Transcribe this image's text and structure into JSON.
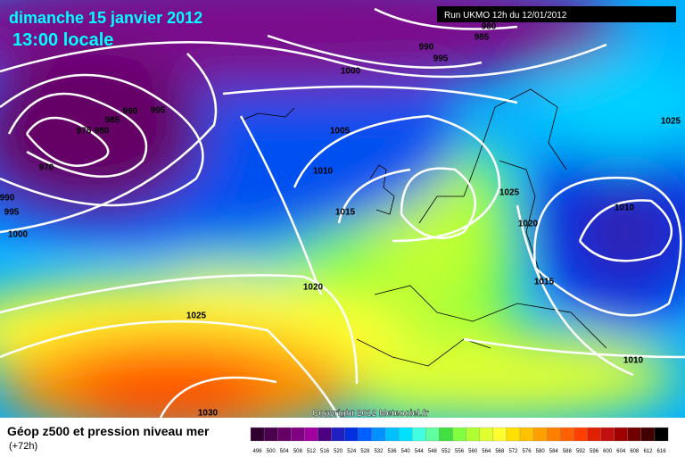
{
  "header": {
    "date": "dimanche 15 janvier 2012",
    "time": "13:00 locale",
    "run": "Run UKMO 12h du 12/01/2012"
  },
  "isobar_labels": [
    "980",
    "985",
    "990",
    "995",
    "1000",
    "990",
    "995",
    "985",
    "975",
    "980",
    "970",
    "990",
    "995",
    "1000",
    "1005",
    "1010",
    "1015",
    "1025",
    "1020",
    "1010",
    "1025",
    "1015",
    "1020",
    "1025",
    "1010",
    "1030"
  ],
  "copyright": "Copyright 2012 Meteociel.fr",
  "legend": {
    "title": "Géop z500 et pression niveau mer",
    "subtitle": "(+72h)",
    "scale": [
      496,
      500,
      504,
      508,
      512,
      516,
      520,
      524,
      528,
      532,
      536,
      540,
      544,
      548,
      552,
      556,
      560,
      564,
      568,
      572,
      576,
      580,
      584,
      588,
      592,
      596,
      600,
      604,
      608,
      612,
      616
    ],
    "colors": [
      "#300030",
      "#4a004a",
      "#650065",
      "#820082",
      "#a000a0",
      "#4b0082",
      "#2020c0",
      "#0030e0",
      "#0060ff",
      "#0090ff",
      "#00c0ff",
      "#00e0ff",
      "#40ffe0",
      "#60ffa0",
      "#40e040",
      "#80ff40",
      "#b0ff30",
      "#e0ff30",
      "#ffff30",
      "#ffe000",
      "#ffc000",
      "#ffa000",
      "#ff8000",
      "#ff6000",
      "#ff4000",
      "#e02000",
      "#c01010",
      "#a00000",
      "#700000",
      "#400000",
      "#000000"
    ]
  }
}
